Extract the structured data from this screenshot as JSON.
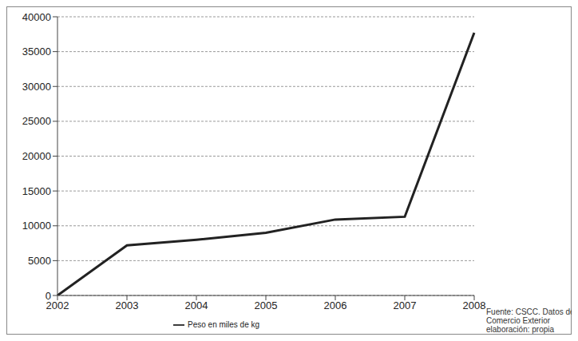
{
  "chart_data": {
    "type": "line",
    "categories": [
      "2002",
      "2003",
      "2004",
      "2005",
      "2006",
      "2007",
      "2008"
    ],
    "series": [
      {
        "name": "Peso en miles de kg",
        "color": "#222222",
        "values": [
          0,
          7200,
          8000,
          9000,
          10900,
          11300,
          37700
        ]
      }
    ],
    "ylim": [
      0,
      40000
    ],
    "yticks": [
      0,
      5000,
      10000,
      15000,
      20000,
      25000,
      30000,
      35000,
      40000
    ],
    "grid": true,
    "legend": "bottom",
    "annotations": [
      "Fuente: CSCC. Datos de",
      "Comercio Exterior",
      "elaboración: propia"
    ]
  }
}
